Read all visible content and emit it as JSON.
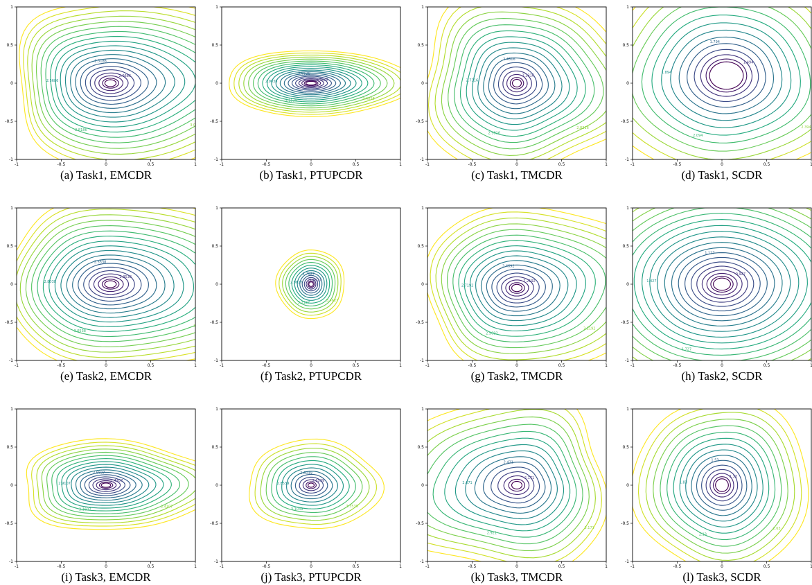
{
  "chart_data": [
    {
      "caption": "(a) Task1, EMCDR",
      "type": "contour",
      "xlim": [
        -1,
        1
      ],
      "ylim": [
        -1,
        1
      ],
      "xticks": [
        "-1",
        "-0.5",
        "0",
        "0.5",
        "1"
      ],
      "yticks": [
        "1",
        "0.5",
        "0",
        "-0.5",
        "-1"
      ],
      "center": [
        0.05,
        0.0
      ],
      "contour_levels": [
        "2.0686",
        "2.3186",
        "2.5686",
        "2.8186",
        "3.0686"
      ]
    },
    {
      "caption": "(b) Task1, PTUPCDR",
      "type": "contour",
      "xlim": [
        -1,
        1
      ],
      "ylim": [
        -1,
        1
      ],
      "xticks": [
        "-1",
        "-0.5",
        "0",
        "0.5",
        "1"
      ],
      "yticks": [
        "1",
        "0.5",
        "0",
        "-0.5",
        "-1"
      ],
      "center": [
        0.0,
        0.0
      ],
      "contour_levels": [
        "2.4038",
        "2.6538",
        "2.9038",
        "3.1538",
        "3.4038"
      ]
    },
    {
      "caption": "(c) Task1, TMCDR",
      "type": "contour",
      "xlim": [
        -1,
        1
      ],
      "ylim": [
        -1,
        1
      ],
      "xticks": [
        "-1",
        "-0.5",
        "0",
        "0.5",
        "1"
      ],
      "yticks": [
        "1",
        "0.5",
        "0",
        "-0.5",
        "-1"
      ],
      "center": [
        0.0,
        0.0
      ],
      "contour_levels": [
        "2.2316",
        "2.4816",
        "2.7316",
        "2.9816",
        "2.8316"
      ]
    },
    {
      "caption": "(d) Task1, SCDR",
      "type": "contour",
      "xlim": [
        -1,
        1
      ],
      "ylim": [
        -1,
        1
      ],
      "xticks": [
        "-1",
        "-0.5",
        "0",
        "0.5",
        "1"
      ],
      "yticks": [
        "1",
        "0.5",
        "0",
        "-0.5",
        "-1"
      ],
      "center": [
        0.05,
        0.1
      ],
      "contour_levels": [
        "1.494",
        "1.794",
        "1.894",
        "2.094",
        "2.394"
      ]
    },
    {
      "caption": "(e) Task2, EMCDR",
      "type": "contour",
      "xlim": [
        -1,
        1
      ],
      "ylim": [
        -1,
        1
      ],
      "xticks": [
        "-1",
        "-0.5",
        "0",
        "0.5",
        "1"
      ],
      "yticks": [
        "1",
        "0.5",
        "0",
        "-0.5",
        "-1"
      ],
      "center": [
        0.05,
        0.0
      ],
      "contour_levels": [
        "2.3538",
        "2.5538",
        "2.8038",
        "3.0538",
        "3.3038"
      ]
    },
    {
      "caption": "(f) Task2, PTUPCDR",
      "type": "contour",
      "xlim": [
        -1,
        1
      ],
      "ylim": [
        -1,
        1
      ],
      "xticks": [
        "-1",
        "-0.5",
        "0",
        "0.5",
        "1"
      ],
      "yticks": [
        "1",
        "0.5",
        "0",
        "-0.5",
        "-1"
      ],
      "center": [
        0.0,
        0.0
      ],
      "contour_levels": [
        "2.4627",
        "2.7127",
        "2.9627",
        "3.2127",
        "3.4627"
      ]
    },
    {
      "caption": "(g) Task2, TMCDR",
      "type": "contour",
      "xlim": [
        -1,
        1
      ],
      "ylim": [
        -1,
        1
      ],
      "xticks": [
        "-1",
        "-0.5",
        "0",
        "0.5",
        "1"
      ],
      "yticks": [
        "1",
        "0.5",
        "0",
        "-0.5",
        "-1"
      ],
      "center": [
        0.0,
        -0.05
      ],
      "contour_levels": [
        "2.2192",
        "2.4692",
        "2.7192",
        "2.9692",
        "3.2192"
      ]
    },
    {
      "caption": "(h) Task2, SCDR",
      "type": "contour",
      "xlim": [
        -1,
        1
      ],
      "ylim": [
        -1,
        1
      ],
      "xticks": [
        "-1",
        "-0.5",
        "0",
        "0.5",
        "1"
      ],
      "yticks": [
        "1",
        "0.5",
        "0",
        "-0.5",
        "-1"
      ],
      "center": [
        0.0,
        0.0
      ],
      "contour_levels": [
        "0.927",
        "1.127",
        "1.427",
        "1.727",
        "2.027"
      ]
    },
    {
      "caption": "(i) Task3, EMCDR",
      "type": "contour",
      "xlim": [
        -1,
        1
      ],
      "ylim": [
        -1,
        1
      ],
      "xticks": [
        "-1",
        "-0.5",
        "0",
        "0.5",
        "1"
      ],
      "yticks": [
        "1",
        "0.5",
        "0",
        "-0.5",
        "-1"
      ],
      "center": [
        0.0,
        0.0
      ],
      "contour_levels": [
        "2.4107",
        "2.6607",
        "2.9107",
        "3.1607",
        "3.4107"
      ]
    },
    {
      "caption": "(j) Task3, PTUPCDR",
      "type": "contour",
      "xlim": [
        -1,
        1
      ],
      "ylim": [
        -1,
        1
      ],
      "xticks": [
        "-1",
        "-0.5",
        "0",
        "0.5",
        "1"
      ],
      "yticks": [
        "1",
        "0.5",
        "0",
        "-0.5",
        "-1"
      ],
      "center": [
        0.0,
        0.0
      ],
      "contour_levels": [
        "2.3539",
        "2.6039",
        "2.8539",
        "3.1039",
        "3.3539"
      ]
    },
    {
      "caption": "(k) Task3, TMCDR",
      "type": "contour",
      "xlim": [
        -1,
        1
      ],
      "ylim": [
        -1,
        1
      ],
      "xticks": [
        "-1",
        "-0.5",
        "0",
        "0.5",
        "1"
      ],
      "yticks": [
        "1",
        "0.5",
        "0",
        "-0.5",
        "-1"
      ],
      "center": [
        0.0,
        0.0
      ],
      "contour_levels": [
        "2.171",
        "2.421",
        "2.671",
        "2.921",
        "3.171"
      ]
    },
    {
      "caption": "(l) Task3, SCDR",
      "type": "contour",
      "xlim": [
        -1,
        1
      ],
      "ylim": [
        -1,
        1
      ],
      "xticks": [
        "-1",
        "-0.5",
        "0",
        "0.5",
        "1"
      ],
      "yticks": [
        "1",
        "0.5",
        "0",
        "-0.5",
        "-1"
      ],
      "center": [
        0.0,
        0.0
      ],
      "contour_levels": [
        "1.33",
        "1.53",
        "1.83",
        "2.13",
        "2.63"
      ]
    }
  ],
  "colormap": [
    "#440154",
    "#472d7b",
    "#3b528b",
    "#2c728e",
    "#21918c",
    "#28ae80",
    "#5ec962",
    "#addc30",
    "#fde725"
  ]
}
